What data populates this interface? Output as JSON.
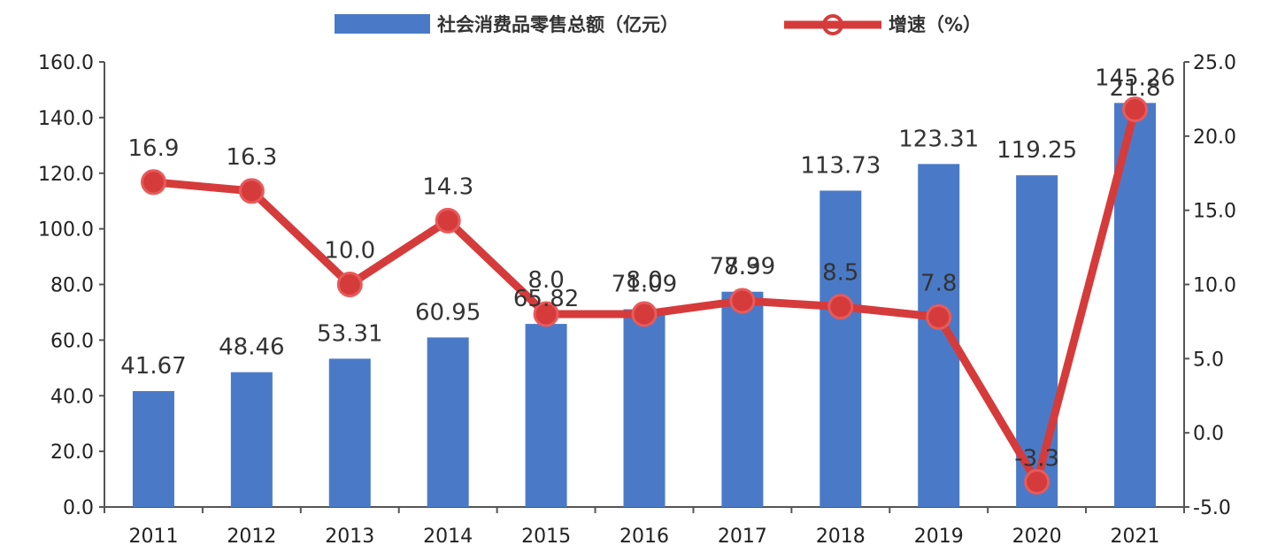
{
  "chart_data": {
    "type": "bar+line",
    "categories": [
      "2011",
      "2012",
      "2013",
      "2014",
      "2015",
      "2016",
      "2017",
      "2018",
      "2019",
      "2020",
      "2021"
    ],
    "series": [
      {
        "name": "社会消费品零售总额（亿元）",
        "type": "bar",
        "axis": "left",
        "color": "#4a7ac7",
        "values": [
          41.67,
          48.46,
          53.31,
          60.95,
          65.82,
          71.09,
          77.39,
          113.73,
          123.31,
          119.25,
          145.26
        ],
        "labels": [
          "41.67",
          "48.46",
          "53.31",
          "60.95",
          "65.82",
          "71.09",
          "77.39",
          "113.73",
          "123.31",
          "119.25",
          "145.26"
        ]
      },
      {
        "name": "增速（%）",
        "type": "line",
        "axis": "right",
        "color": "#d63b3b",
        "values": [
          16.9,
          16.3,
          10.0,
          14.3,
          8.0,
          8.0,
          8.9,
          8.5,
          7.8,
          -3.3,
          21.8
        ],
        "labels": [
          "16.9",
          "16.3",
          "10.0",
          "14.3",
          "8.0",
          "8.0",
          "8.9",
          "8.5",
          "7.8",
          "-3.3",
          "21.8"
        ]
      }
    ],
    "left_axis": {
      "min": 0,
      "max": 160,
      "ticks": [
        "0.0",
        "20.0",
        "40.0",
        "60.0",
        "80.0",
        "100.0",
        "120.0",
        "140.0",
        "160.0"
      ]
    },
    "right_axis": {
      "min": -5,
      "max": 25,
      "ticks": [
        "-5.0",
        "0.0",
        "5.0",
        "10.0",
        "15.0",
        "20.0",
        "25.0"
      ]
    },
    "legend_position": "top",
    "grid": false
  }
}
